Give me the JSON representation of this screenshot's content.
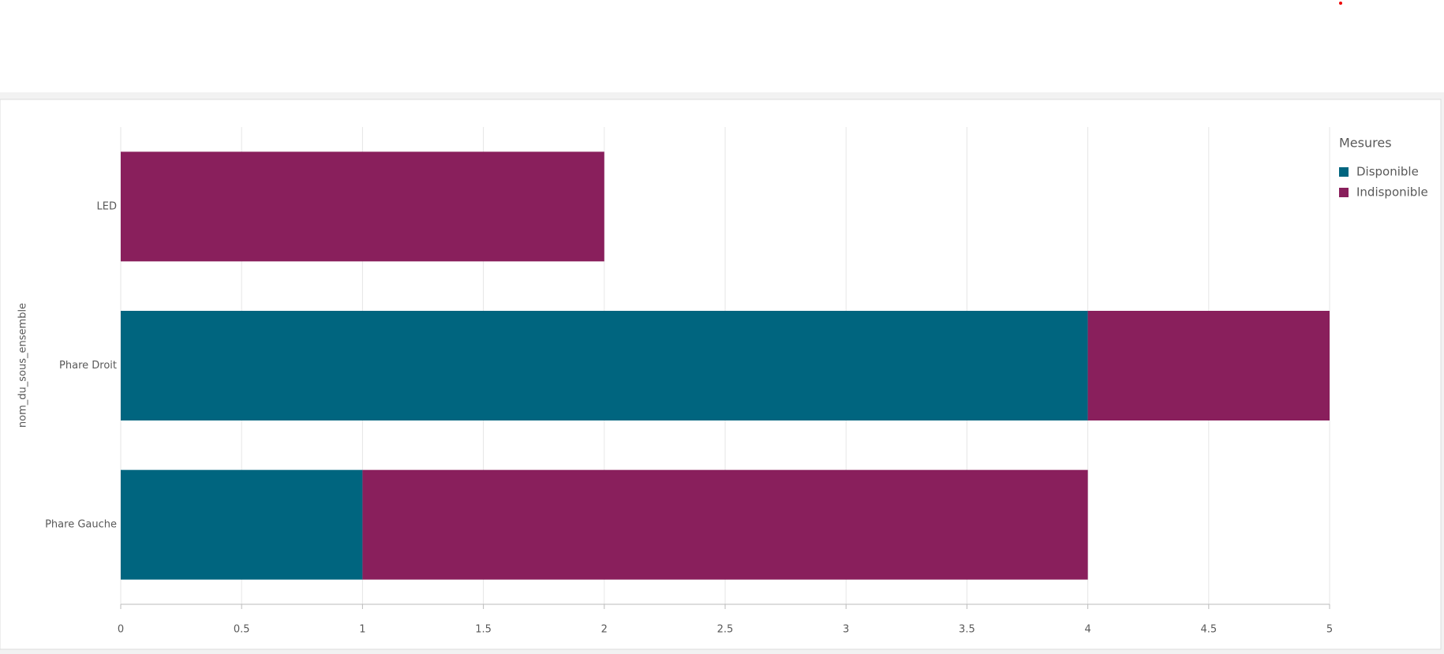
{
  "chart_data": {
    "type": "bar",
    "orientation": "horizontal",
    "stacked": true,
    "y_label": "nom_du_sous_ensemble",
    "legend_title": "Mesures",
    "legend": "top-right",
    "categories": [
      "LED",
      "Phare Droit",
      "Phare Gauche"
    ],
    "series": [
      {
        "name": "Disponible",
        "color": "#00657f",
        "values": [
          0,
          4,
          1
        ]
      },
      {
        "name": "Indisponible",
        "color": "#891f5c",
        "values": [
          2,
          1,
          3
        ]
      }
    ],
    "xlim": [
      0,
      5
    ],
    "xticks": [
      0,
      0.5,
      1,
      1.5,
      2,
      2.5,
      3,
      3.5,
      4,
      4.5,
      5
    ],
    "grid": true
  }
}
